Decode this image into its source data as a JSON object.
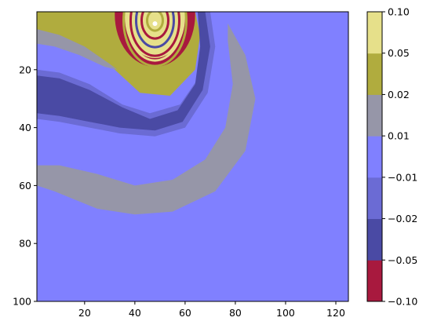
{
  "chart_data": {
    "type": "heatmap",
    "subtype": "filled-contour",
    "title": "",
    "xlabel": "",
    "ylabel": "",
    "xlim": [
      1,
      125
    ],
    "ylim": [
      100,
      0
    ],
    "y_axis_inverted": true,
    "x_ticks": [
      20,
      40,
      60,
      80,
      100,
      120
    ],
    "y_ticks": [
      20,
      40,
      60,
      80,
      100
    ],
    "x_tick_labels": [
      "20",
      "40",
      "60",
      "80",
      "100",
      "120"
    ],
    "y_tick_labels": [
      "20",
      "40",
      "60",
      "80",
      "100"
    ],
    "grid": false,
    "colorbar": {
      "levels": [
        -0.1,
        -0.05,
        -0.02,
        -0.01,
        0.01,
        0.02,
        0.05,
        0.1
      ],
      "tick_labels": [
        "−0.10",
        "−0.05",
        "−0.02",
        "−0.01",
        "0.01",
        "0.02",
        "0.05",
        "0.10"
      ],
      "band_colors": [
        "#a8193e",
        "#4a4aa4",
        "#6b6bd4",
        "#8080ff",
        "#9696a8",
        "#b0ac3e",
        "#e6e08a"
      ]
    },
    "background_color": "#8080ff",
    "source_center": {
      "x": 48,
      "y": 3
    },
    "regions": [
      {
        "name": "olive-upper-left-band",
        "value_band": "0.02 to 0.05",
        "color": "#b0ac3e",
        "outline": [
          [
            1,
            0
          ],
          [
            1,
            9
          ],
          [
            10,
            10
          ],
          [
            22,
            14
          ],
          [
            32,
            20
          ],
          [
            42,
            28
          ],
          [
            54,
            29
          ],
          [
            64,
            20
          ],
          [
            66,
            8
          ],
          [
            64,
            0
          ]
        ]
      },
      {
        "name": "gray-outer-arc",
        "value_band": "0.01 to 0.02",
        "color": "#9696a8",
        "outline": [
          [
            77,
            4
          ],
          [
            84,
            15
          ],
          [
            88,
            30
          ],
          [
            84,
            48
          ],
          [
            72,
            62
          ],
          [
            55,
            69
          ],
          [
            40,
            70
          ],
          [
            25,
            68
          ],
          [
            8,
            62
          ],
          [
            1,
            60
          ],
          [
            1,
            53
          ],
          [
            10,
            53
          ],
          [
            25,
            56
          ],
          [
            40,
            60
          ],
          [
            55,
            58
          ],
          [
            68,
            51
          ],
          [
            76,
            40
          ],
          [
            79,
            25
          ],
          [
            77,
            10
          ]
        ]
      },
      {
        "name": "gray-inner-arc",
        "value_band": "0.01 to 0.02",
        "color": "#9696a8",
        "outline": [
          [
            1,
            6
          ],
          [
            10,
            8
          ],
          [
            20,
            12
          ],
          [
            30,
            18
          ],
          [
            33,
            20
          ],
          [
            28,
            19
          ],
          [
            18,
            15
          ],
          [
            8,
            12
          ],
          [
            1,
            11
          ]
        ]
      },
      {
        "name": "medium-blue-swirl",
        "value_band": "-0.02 to -0.01",
        "color": "#6b6bd4",
        "outline": [
          [
            1,
            20
          ],
          [
            10,
            21
          ],
          [
            22,
            25
          ],
          [
            35,
            32
          ],
          [
            46,
            35
          ],
          [
            58,
            32
          ],
          [
            66,
            22
          ],
          [
            68,
            10
          ],
          [
            67,
            0
          ],
          [
            70,
            0
          ],
          [
            72,
            12
          ],
          [
            69,
            28
          ],
          [
            60,
            40
          ],
          [
            48,
            43
          ],
          [
            34,
            42
          ],
          [
            22,
            40
          ],
          [
            10,
            38
          ],
          [
            1,
            37
          ]
        ]
      },
      {
        "name": "dark-blue-swirl",
        "value_band": "-0.05 to -0.02",
        "color": "#4a4aa4",
        "outline": [
          [
            1,
            22
          ],
          [
            10,
            23
          ],
          [
            22,
            27
          ],
          [
            35,
            33
          ],
          [
            46,
            37
          ],
          [
            57,
            34
          ],
          [
            64,
            25
          ],
          [
            66,
            12
          ],
          [
            65,
            0
          ],
          [
            68,
            0
          ],
          [
            70,
            12
          ],
          [
            67,
            27
          ],
          [
            59,
            38
          ],
          [
            48,
            41
          ],
          [
            34,
            40
          ],
          [
            22,
            38
          ],
          [
            10,
            36
          ],
          [
            1,
            35
          ]
        ]
      },
      {
        "name": "crimson-source-ring",
        "value_band": "-0.10 to -0.05",
        "color": "#a8193e",
        "center": [
          48,
          1
        ],
        "rx": 16,
        "ry": 18
      },
      {
        "name": "yellow-source-core",
        "value_band": "0.05 to 0.10",
        "color": "#e6e08a",
        "center": [
          48,
          2
        ],
        "rx": 12,
        "ry": 14
      }
    ]
  }
}
